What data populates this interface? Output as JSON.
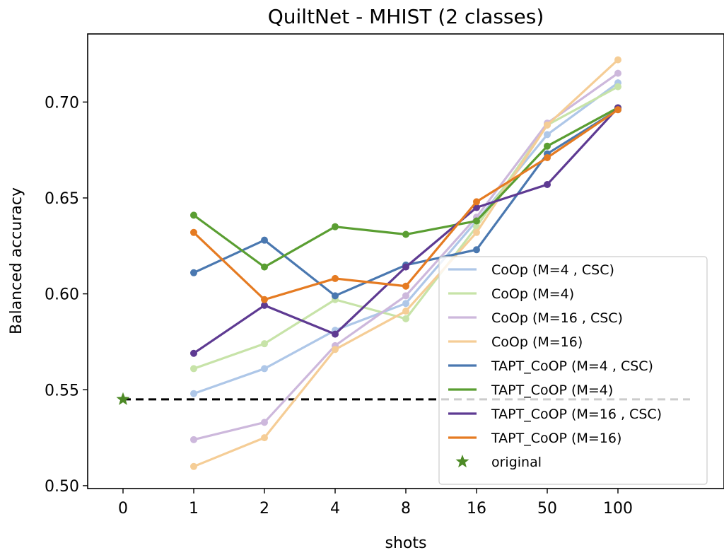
{
  "chart_data": {
    "type": "line",
    "title": "QuiltNet - MHIST (2 classes)",
    "xlabel": "shots",
    "ylabel": "Balanced accuracy",
    "categories": [
      "0",
      "1",
      "2",
      "4",
      "8",
      "16",
      "50",
      "100"
    ],
    "ylim": [
      0.4985,
      0.7355
    ],
    "yticks": [
      0.5,
      0.55,
      0.6,
      0.65,
      0.7
    ],
    "ytick_labels": [
      "0.50",
      "0.55",
      "0.60",
      "0.65",
      "0.70"
    ],
    "grid": false,
    "legend_position": "lower-right",
    "series": [
      {
        "name": "CoOp (M=4 , CSC)",
        "color": "#aec7e8",
        "faded": true,
        "values": [
          null,
          0.548,
          0.561,
          0.581,
          0.595,
          0.638,
          0.683,
          0.71
        ]
      },
      {
        "name": "CoOp (M=4)",
        "color": "#c7e3a8",
        "faded": true,
        "values": [
          null,
          0.561,
          0.574,
          0.597,
          0.587,
          0.635,
          0.688,
          0.708
        ]
      },
      {
        "name": "CoOp (M=16 , CSC)",
        "color": "#cdb8dc",
        "faded": true,
        "values": [
          null,
          0.524,
          0.533,
          0.573,
          0.599,
          0.64,
          0.689,
          0.715
        ]
      },
      {
        "name": "CoOp (M=16)",
        "color": "#f5cd96",
        "faded": true,
        "values": [
          null,
          0.51,
          0.525,
          0.571,
          0.591,
          0.632,
          0.688,
          0.722
        ]
      },
      {
        "name": "TAPT_CoOP (M=4 , CSC)",
        "color": "#4a78b0",
        "faded": false,
        "values": [
          null,
          0.611,
          0.628,
          0.599,
          0.615,
          0.623,
          0.673,
          0.696
        ]
      },
      {
        "name": "TAPT_CoOP (M=4)",
        "color": "#5a9e32",
        "faded": false,
        "values": [
          null,
          0.641,
          0.614,
          0.635,
          0.631,
          0.638,
          0.677,
          0.697
        ]
      },
      {
        "name": "TAPT_CoOP (M=16 , CSC)",
        "color": "#5e3a92",
        "faded": false,
        "values": [
          null,
          0.569,
          0.594,
          0.579,
          0.614,
          0.645,
          0.657,
          0.697
        ]
      },
      {
        "name": "TAPT_CoOP (M=16)",
        "color": "#e57b22",
        "faded": false,
        "values": [
          null,
          0.632,
          0.597,
          0.608,
          0.604,
          0.648,
          0.671,
          0.696
        ]
      }
    ],
    "original": {
      "name": "original",
      "x": "0",
      "value": 0.545,
      "color": "#4d8a26",
      "baseline_color": "#000000"
    }
  }
}
